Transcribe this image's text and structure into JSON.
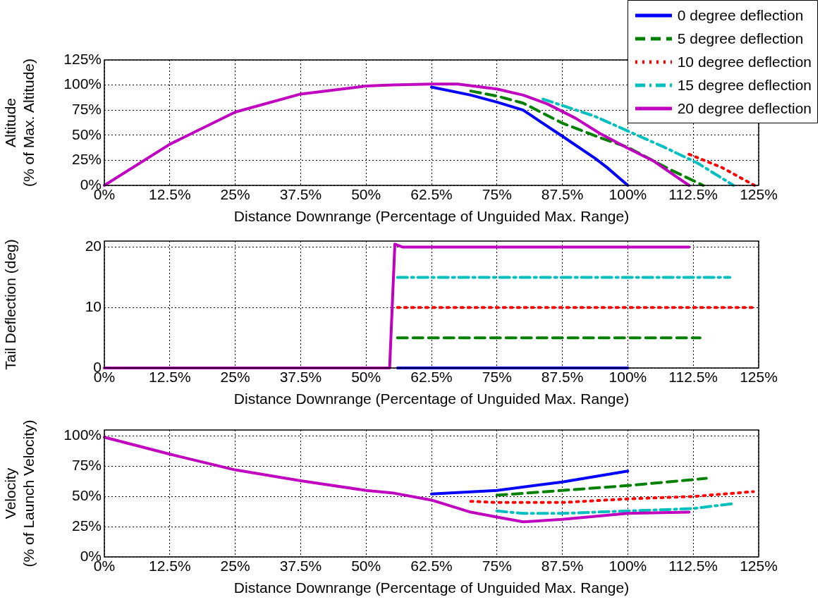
{
  "chart_data": [
    {
      "type": "line",
      "xlabel": "Distance Downrange (Percentage of Unguided Max. Range)",
      "ylabel": "Altitude\n(% of Max. Altitude)",
      "xlim": [
        0,
        125
      ],
      "xticks": [
        {
          "value": 0,
          "label": "0%"
        },
        {
          "value": 12.5,
          "label": "12.5%"
        },
        {
          "value": 25,
          "label": "25%"
        },
        {
          "value": 37.5,
          "label": "37.5%"
        },
        {
          "value": 50,
          "label": "50%"
        },
        {
          "value": 62.5,
          "label": "62.5%"
        },
        {
          "value": 75,
          "label": "75%"
        },
        {
          "value": 87.5,
          "label": "87.5%"
        },
        {
          "value": 100,
          "label": "100%"
        },
        {
          "value": 112.5,
          "label": "112.5%"
        },
        {
          "value": 125,
          "label": "125%"
        }
      ],
      "ylim": [
        0,
        125
      ],
      "yticks": [
        {
          "value": 0,
          "label": "0%"
        },
        {
          "value": 25,
          "label": "25%"
        },
        {
          "value": 50,
          "label": "50%"
        },
        {
          "value": 75,
          "label": "75%"
        },
        {
          "value": 100,
          "label": "100%"
        },
        {
          "value": 125,
          "label": "125%"
        }
      ],
      "grid": true,
      "legend": "top right",
      "series": [
        {
          "name": "0 degree deflection",
          "color": "#0000ff",
          "line_style": "solid",
          "x": [
            62.5,
            70,
            75,
            80,
            87.5,
            93.75,
            96,
            100
          ],
          "values": [
            98,
            90,
            83,
            75,
            49,
            27,
            18,
            0
          ]
        },
        {
          "name": "5 degree deflection",
          "color": "#008000",
          "line_style": "dashed",
          "x": [
            70,
            75,
            80,
            87.5,
            95,
            100,
            108,
            114.4
          ],
          "values": [
            94,
            89,
            82,
            62,
            47,
            38,
            16,
            0
          ]
        },
        {
          "name": "10 degree deflection",
          "color": "#ff0000",
          "line_style": "dotted",
          "x": [
            111.7,
            117.9,
            124.2
          ],
          "values": [
            31,
            18,
            0
          ]
        },
        {
          "name": "15 degree deflection",
          "color": "#00bfbf",
          "line_style": "dashdot",
          "x": [
            83.8,
            93.6,
            107,
            113.4,
            120.2
          ],
          "values": [
            86,
            69,
            38,
            22,
            0
          ]
        },
        {
          "name": "20 degree deflection",
          "color": "#bf00bf",
          "line_style": "solid",
          "x": [
            0,
            12.5,
            25,
            37.5,
            50,
            55,
            62.5,
            67.5,
            75,
            80,
            84.7,
            90,
            94.6,
            100,
            105,
            111.7
          ],
          "values": [
            0,
            41,
            73,
            91,
            99,
            100,
            101,
            101,
            96,
            90,
            81,
            67,
            52,
            37,
            24,
            0
          ]
        }
      ]
    },
    {
      "type": "line",
      "xlabel": "Distance Downrange (Percentage of Unguided Max. Range)",
      "ylabel": "Tail Deflection (deg)",
      "xlim": [
        0,
        125
      ],
      "xticks": [
        {
          "value": 0,
          "label": "0%"
        },
        {
          "value": 12.5,
          "label": "12.5%"
        },
        {
          "value": 25,
          "label": "25%"
        },
        {
          "value": 37.5,
          "label": "37.5%"
        },
        {
          "value": 50,
          "label": "50%"
        },
        {
          "value": 62.5,
          "label": "62.5%"
        },
        {
          "value": 75,
          "label": "75%"
        },
        {
          "value": 87.5,
          "label": "87.5%"
        },
        {
          "value": 100,
          "label": "100%"
        },
        {
          "value": 112.5,
          "label": "112.5%"
        },
        {
          "value": 125,
          "label": "125%"
        }
      ],
      "ylim": [
        0,
        21
      ],
      "yticks": [
        0,
        10,
        20
      ],
      "grid": true,
      "series": [
        {
          "color": "#0000ff",
          "line_style": "solid",
          "x": [
            56,
            100
          ],
          "values": [
            0,
            0
          ]
        },
        {
          "color": "#008000",
          "line_style": "dashed",
          "x": [
            56,
            113.8
          ],
          "values": [
            5,
            5
          ]
        },
        {
          "color": "#ff0000",
          "line_style": "dotted",
          "x": [
            56,
            124.2
          ],
          "values": [
            10,
            10
          ]
        },
        {
          "color": "#00bfbf",
          "line_style": "dashdot",
          "x": [
            56,
            119.5
          ],
          "values": [
            15,
            15
          ]
        },
        {
          "color": "#bf00bf",
          "line_style": "solid",
          "x": [
            0,
            54.5,
            55.5,
            57,
            111.7
          ],
          "values": [
            0,
            0,
            20.5,
            20,
            20
          ]
        }
      ]
    },
    {
      "type": "line",
      "xlabel": "Distance Downrange (Percentage of Unguided Max. Range)",
      "ylabel": "Velocity\n(% of Launch Velocity)",
      "xlim": [
        0,
        125
      ],
      "xticks": [
        {
          "value": 0,
          "label": "0%"
        },
        {
          "value": 12.5,
          "label": "12.5%"
        },
        {
          "value": 25,
          "label": "25%"
        },
        {
          "value": 37.5,
          "label": "37.5%"
        },
        {
          "value": 50,
          "label": "50%"
        },
        {
          "value": 62.5,
          "label": "62.5%"
        },
        {
          "value": 75,
          "label": "75%"
        },
        {
          "value": 87.5,
          "label": "87.5%"
        },
        {
          "value": 100,
          "label": "100%"
        },
        {
          "value": 112.5,
          "label": "112.5%"
        },
        {
          "value": 125,
          "label": "125%"
        }
      ],
      "ylim": [
        0,
        105
      ],
      "yticks": [
        {
          "value": 0,
          "label": "0%"
        },
        {
          "value": 25,
          "label": "25%"
        },
        {
          "value": 50,
          "label": "50%"
        },
        {
          "value": 75,
          "label": "75%"
        },
        {
          "value": 100,
          "label": "100%"
        }
      ],
      "grid": true,
      "series": [
        {
          "color": "#0000ff",
          "line_style": "solid",
          "x": [
            62.5,
            75,
            87.5,
            100
          ],
          "values": [
            52,
            55,
            62,
            71
          ]
        },
        {
          "color": "#008000",
          "line_style": "dashed",
          "x": [
            75,
            87.5,
            100,
            115
          ],
          "values": [
            51,
            55,
            59,
            65
          ]
        },
        {
          "color": "#ff0000",
          "line_style": "dotted",
          "x": [
            70,
            75,
            87.5,
            100,
            112.5,
            124
          ],
          "values": [
            46,
            45,
            45,
            48,
            50,
            54
          ]
        },
        {
          "color": "#00bfbf",
          "line_style": "dashdot",
          "x": [
            75,
            80,
            87.5,
            100,
            112.5,
            120
          ],
          "values": [
            38,
            36,
            36,
            38,
            40,
            44
          ]
        },
        {
          "color": "#bf00bf",
          "line_style": "solid",
          "x": [
            0,
            12.5,
            25,
            37.5,
            50,
            55,
            62.5,
            70,
            75,
            80,
            87.5,
            100,
            111.7
          ],
          "values": [
            99,
            85,
            72,
            63,
            55,
            53,
            47,
            37,
            33,
            29,
            31,
            36,
            37
          ]
        }
      ]
    }
  ]
}
